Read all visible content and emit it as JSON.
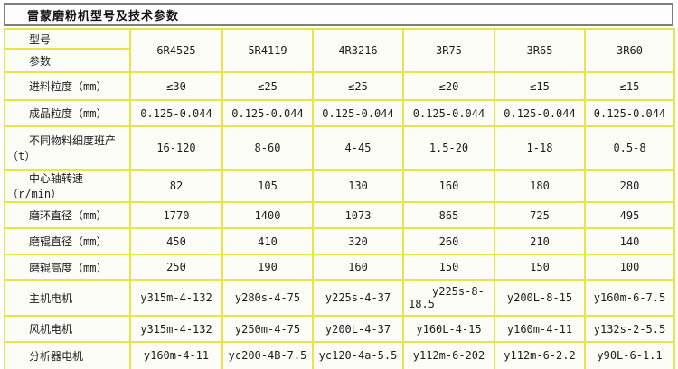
{
  "title": "雷蒙磨粉机型号及技术参数",
  "table": {
    "corner": {
      "top": "型号",
      "bottom": "参数"
    },
    "models": [
      "6R4525",
      "5R4119",
      "4R3216",
      "3R75",
      "3R65",
      "3R60"
    ],
    "rows": [
      {
        "label": "进料粒度（mm）",
        "values": [
          "≤30",
          "≤25",
          "≤25",
          "≤20",
          "≤15",
          "≤15"
        ]
      },
      {
        "label": "成品粒度（mm）",
        "values": [
          "0.125-0.044",
          "0.125-0.044",
          "0.125-0.044",
          "0.125-0.044",
          "0.125-0.044",
          "0.125-0.044"
        ]
      },
      {
        "label": "不同物料细度班产\n（t）",
        "values": [
          "16-120",
          "8-60",
          "4-45",
          "1.5-20",
          "1-18",
          "0.5-8"
        ]
      },
      {
        "label": "中心轴转速（r/min）",
        "values": [
          "82",
          "105",
          "130",
          "160",
          "180",
          "280"
        ]
      },
      {
        "label": "磨环直径（mm）",
        "values": [
          "1770",
          "1400",
          "1073",
          "865",
          "725",
          "495"
        ]
      },
      {
        "label": "磨辊直径（mm）",
        "values": [
          "450",
          "410",
          "320",
          "260",
          "210",
          "140"
        ]
      },
      {
        "label": "磨辊高度（mm）",
        "values": [
          "250",
          "190",
          "160",
          "150",
          "150",
          "100"
        ]
      },
      {
        "label": "主机电机",
        "values": [
          "y315m-4-132",
          "y280s-4-75",
          "y225s-4-37",
          "y225s-8-\n18.5",
          "y200L-8-15",
          "y160m-6-7.5"
        ]
      },
      {
        "label": "风机电机",
        "values": [
          "y315m-4-132",
          "y250m-4-75",
          "y200L-4-37",
          "y160L-4-15",
          "y160m-4-11",
          "y132s-2-5.5"
        ]
      },
      {
        "label": "分析器电机",
        "values": [
          "y160m-4-11",
          "yc200-4B-7.5",
          "yc120-4a-5.5",
          "y112m-6-202",
          "y112m-6-2.2",
          "y90L-6-1.1"
        ]
      }
    ]
  }
}
